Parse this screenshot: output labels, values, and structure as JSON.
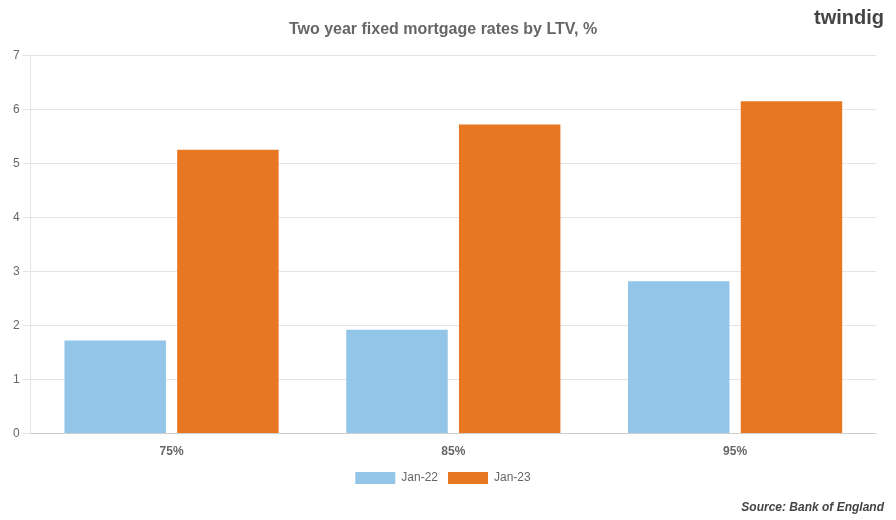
{
  "chart_data": {
    "type": "bar",
    "title": "Two year fixed mortgage rates by LTV, %",
    "categories": [
      "75%",
      "85%",
      "95%"
    ],
    "series": [
      {
        "name": "Jan-22",
        "color": "#92C5E8",
        "values": [
          1.72,
          1.92,
          2.82
        ]
      },
      {
        "name": "Jan-23",
        "color": "#E87722",
        "values": [
          5.25,
          5.72,
          6.15
        ]
      }
    ],
    "ylim": [
      0,
      7
    ],
    "yticks": [
      0,
      1,
      2,
      3,
      4,
      5,
      6,
      7
    ],
    "grid": true,
    "legend": "bottom",
    "annotations": [
      "Source: Bank of England",
      "twindig"
    ]
  }
}
